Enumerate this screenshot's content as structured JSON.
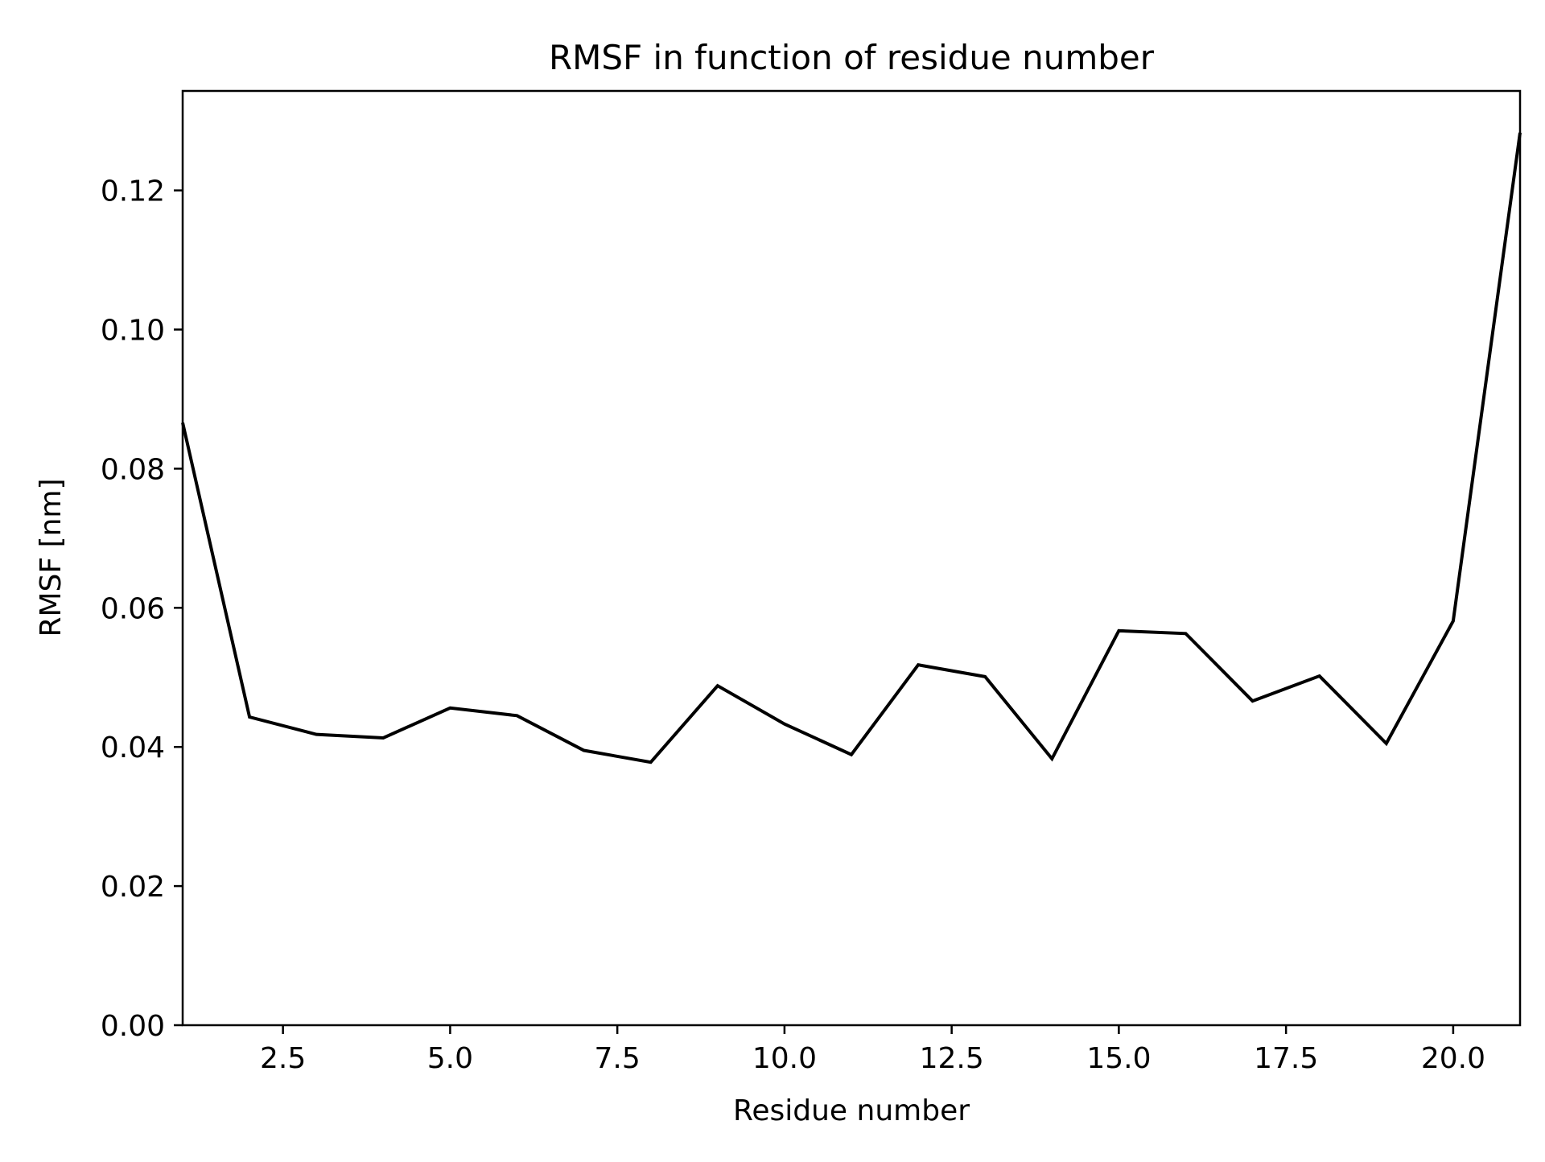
{
  "chart_data": {
    "type": "line",
    "title": "RMSF in function of residue number",
    "xlabel": "Residue number",
    "ylabel": "RMSF [nm]",
    "xlim": [
      1,
      21
    ],
    "ylim": [
      0,
      0.1343
    ],
    "xticks": [
      "2.5",
      "5.0",
      "7.5",
      "10.0",
      "12.5",
      "15.0",
      "17.5",
      "20.0"
    ],
    "yticks": [
      "0.00",
      "0.02",
      "0.04",
      "0.06",
      "0.08",
      "0.10",
      "0.12"
    ],
    "grid": false,
    "line_color": "#000000",
    "series": [
      {
        "x": [
          1,
          2,
          3,
          4,
          5,
          6,
          7,
          8,
          9,
          10,
          11,
          12,
          13,
          14,
          15,
          16,
          17,
          18,
          19,
          20,
          21
        ],
        "values": [
          0.0866,
          0.0443,
          0.0418,
          0.0413,
          0.0456,
          0.0445,
          0.0395,
          0.0378,
          0.0488,
          0.0433,
          0.0389,
          0.0518,
          0.0501,
          0.0383,
          0.0567,
          0.0563,
          0.0466,
          0.0502,
          0.0405,
          0.0581,
          0.1283
        ]
      }
    ]
  }
}
